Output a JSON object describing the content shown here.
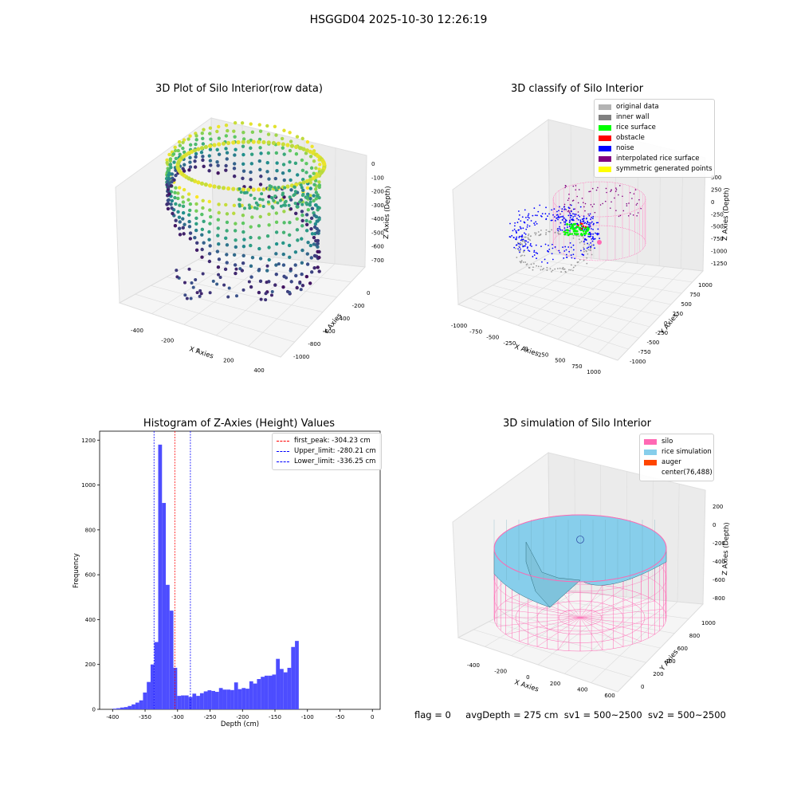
{
  "suptitle": "HSGGD04 2025-10-30 12:26:19",
  "footer": {
    "flag": "flag = 0",
    "avg_depth": "avgDepth = 275 cm",
    "sv1": "sv1 = 500~2500",
    "sv2": "sv2 = 500~2500"
  },
  "chart_data": [
    {
      "type": "scatter",
      "title": "3D Plot of Silo Interior(row data)",
      "xlabel": "X Axies",
      "ylabel": "Y Axies",
      "zlabel": "Z Axies (Depth)",
      "x_ticks": [
        "-400",
        "-200",
        "0",
        "200",
        "400"
      ],
      "y_ticks": [
        "0",
        "-200",
        "-400",
        "-600",
        "-800",
        "-1000"
      ],
      "z_ticks": [
        "0",
        "-100",
        "-200",
        "-300",
        "-400",
        "-500",
        "-600",
        "-700"
      ],
      "colormap": "viridis"
    },
    {
      "type": "scatter",
      "title": "3D classify of Silo Interior",
      "xlabel": "X Axies",
      "ylabel": "Y Axies",
      "zlabel": "Z Axies (Depth)",
      "x_ticks": [
        "-1000",
        "-750",
        "-500",
        "-250",
        "0",
        "250",
        "500",
        "750",
        "1000"
      ],
      "y_ticks": [
        "1000",
        "750",
        "500",
        "250",
        "0",
        "-250",
        "-500",
        "-750",
        "-1000"
      ],
      "z_ticks": [
        "500",
        "250",
        "0",
        "-250",
        "-500",
        "-750",
        "-1000",
        "-1250"
      ],
      "legend_position": "top-right",
      "legend": [
        {
          "label": "original data",
          "color": "#b3b3b3"
        },
        {
          "label": "inner wall",
          "color": "#808080"
        },
        {
          "label": "rice surface",
          "color": "#00ff00"
        },
        {
          "label": "obstacle",
          "color": "#ff0000"
        },
        {
          "label": "noise",
          "color": "#0000ff"
        },
        {
          "label": "interpolated rice surface",
          "color": "#800080"
        },
        {
          "label": "symmetric generated points",
          "color": "#ffff00"
        }
      ]
    },
    {
      "type": "bar",
      "title": "Histogram of Z-Axies (Height) Values",
      "xlabel": "Depth (cm)",
      "ylabel": "Frequency",
      "xlim": [
        -420,
        12
      ],
      "ylim": [
        0,
        1240
      ],
      "x_ticks": [
        -400,
        -350,
        -300,
        -250,
        -200,
        -150,
        -100,
        -50,
        0
      ],
      "y_ticks": [
        0,
        200,
        400,
        600,
        800,
        1000,
        1200
      ],
      "bar_color": "#4d4dff",
      "bins": {
        "start": -400,
        "width": 5.85,
        "counts": [
          3,
          5,
          8,
          10,
          15,
          22,
          30,
          40,
          75,
          122,
          200,
          300,
          1180,
          920,
          555,
          440,
          185,
          60,
          62,
          62,
          55,
          70,
          60,
          72,
          80,
          85,
          82,
          78,
          95,
          88,
          88,
          86,
          120,
          90,
          95,
          92,
          125,
          115,
          135,
          145,
          150,
          150,
          155,
          225,
          180,
          165,
          185,
          278,
          305
        ]
      },
      "legend_position": "top-right",
      "lines": [
        {
          "label": "first_peak: -304.23 cm",
          "x": -304.23,
          "color": "#ff0000"
        },
        {
          "label": "Upper_limit: -280.21 cm",
          "x": -280.21,
          "color": "#0000ff"
        },
        {
          "label": "Lower_limit: -336.25 cm",
          "x": -336.25,
          "color": "#0000ff"
        }
      ]
    },
    {
      "type": "surface",
      "title": "3D simulation of Silo Interior",
      "xlabel": "X Axies",
      "ylabel": "Y Axies",
      "zlabel": "Z Axies (Depth)",
      "x_ticks": [
        "-400",
        "-200",
        "0",
        "200",
        "400",
        "600"
      ],
      "y_ticks": [
        "0",
        "200",
        "400",
        "600",
        "800",
        "1000"
      ],
      "z_ticks": [
        "200",
        "0",
        "-200",
        "-400",
        "-600",
        "-800"
      ],
      "legend_position": "top-right",
      "legend": [
        {
          "label": "silo",
          "color": "#ff69b4"
        },
        {
          "label": "rice simulation",
          "color": "#87ceeb"
        },
        {
          "label": "auger",
          "color": "#ff4500"
        },
        {
          "label": "center(76,488)",
          "color": ""
        }
      ]
    }
  ]
}
